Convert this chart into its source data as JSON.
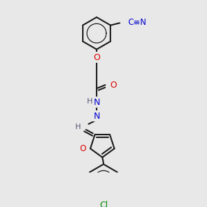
{
  "background_color": "#e8e8e8",
  "bond_color": "#1a1a1a",
  "atom_colors": {
    "O": "#dd0000",
    "N": "#0000cc",
    "Cl": "#008800",
    "H": "#555577",
    "C_CN": "#1a1a1a"
  },
  "figsize": [
    3.0,
    3.0
  ],
  "dpi": 100,
  "lw": 1.5,
  "fs": 8.5
}
